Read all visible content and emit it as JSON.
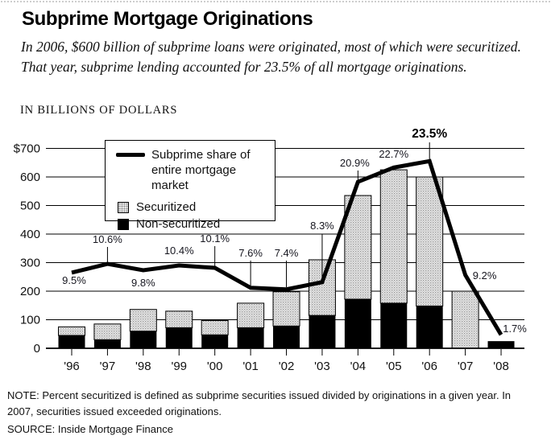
{
  "page": {
    "title": "Subprime Mortgage Originations",
    "subtitle": "In 2006, $600 billion of subprime loans were originated, most of which were securitized. That year, subprime lending accounted for 23.5% of all mortgage originations.",
    "units_label": "IN BILLIONS OF DOLLARS",
    "note": "NOTE: Percent securitized is defined as subprime securities issued divided by originations in a given year. In 2007, securities issued exceeded originations.",
    "source": "SOURCE: Inside Mortgage Finance"
  },
  "legend": {
    "line_label": "Subprime share of entire mortgage market",
    "securitized_label": "Securitized",
    "non_securitized_label": "Non-securitized"
  },
  "colors": {
    "bar_non_securitized": "#000000",
    "bar_securitized_bg": "#ebebeb",
    "bar_securitized_dot": "#9b9b9b",
    "line": "#000000",
    "grid": "#000000",
    "text": "#111111"
  },
  "chart_data": {
    "type": "bar",
    "subtype": "stacked-bar-with-line",
    "title": "Subprime Mortgage Originations",
    "xlabel": "",
    "ylabel": "IN BILLIONS OF DOLLARS",
    "ylim": [
      0,
      700
    ],
    "grid": true,
    "legend_position": "top-left-inset",
    "categories": [
      "'96",
      "'97",
      "'98",
      "'99",
      "'00",
      "'01",
      "'02",
      "'03",
      "'04",
      "'05",
      "'06",
      "'07",
      "'08"
    ],
    "y_axis_ticks": [
      "$700",
      "600",
      "500",
      "400",
      "300",
      "200",
      "100",
      "0"
    ],
    "series": [
      {
        "name": "Non-securitized",
        "type": "bar",
        "stack": "originations",
        "values": [
          45,
          30,
          60,
          72,
          47,
          72,
          78,
          115,
          172,
          158,
          148,
          0,
          25
        ]
      },
      {
        "name": "Securitized",
        "type": "bar",
        "stack": "originations",
        "values": [
          30,
          55,
          76,
          58,
          50,
          86,
          120,
          195,
          363,
          467,
          452,
          200,
          0
        ]
      },
      {
        "name": "Subprime share of entire mortgage market",
        "type": "line",
        "unit": "%",
        "values": [
          9.5,
          10.6,
          9.8,
          10.4,
          10.1,
          7.6,
          7.4,
          8.3,
          20.9,
          22.7,
          23.5,
          9.2,
          1.7
        ]
      }
    ],
    "annotations": [
      {
        "i": 0,
        "text": "9.5%",
        "dx": 3,
        "y": 203,
        "bold": false,
        "leader": null
      },
      {
        "i": 1,
        "text": "10.6%",
        "dx": 0,
        "y": 152,
        "bold": false,
        "leader": [
          157,
          176
        ]
      },
      {
        "i": 2,
        "text": "9.8%",
        "dx": 0,
        "y": 206,
        "bold": false,
        "leader": null
      },
      {
        "i": 3,
        "text": "10.4%",
        "dx": 0,
        "y": 166,
        "bold": false,
        "leader": null
      },
      {
        "i": 4,
        "text": "10.1%",
        "dx": 0,
        "y": 151,
        "bold": false,
        "leader": [
          156,
          181
        ]
      },
      {
        "i": 5,
        "text": "7.6%",
        "dx": 0,
        "y": 169,
        "bold": false,
        "leader": [
          174,
          205
        ]
      },
      {
        "i": 6,
        "text": "7.4%",
        "dx": 0,
        "y": 169,
        "bold": false,
        "leader": [
          174,
          207
        ]
      },
      {
        "i": 7,
        "text": "8.3%",
        "dx": 0,
        "y": 135,
        "bold": false,
        "leader": [
          141,
          198
        ]
      },
      {
        "i": 8,
        "text": "20.9%",
        "dx": -4,
        "y": 57,
        "bold": false,
        "leader": [
          62,
          74
        ]
      },
      {
        "i": 9,
        "text": "22.7%",
        "dx": 0,
        "y": 46,
        "bold": false,
        "leader": null
      },
      {
        "i": 10,
        "text": "23.5%",
        "dx": 0,
        "y": 21,
        "bold": true,
        "leader": [
          27,
          48
        ]
      },
      {
        "i": 11,
        "text": "9.2%",
        "dx": 24,
        "y": 197,
        "bold": false,
        "leader": null
      },
      {
        "i": 12,
        "text": "1.7%",
        "dx": 17,
        "y": 263,
        "bold": false,
        "leader": null
      }
    ]
  }
}
